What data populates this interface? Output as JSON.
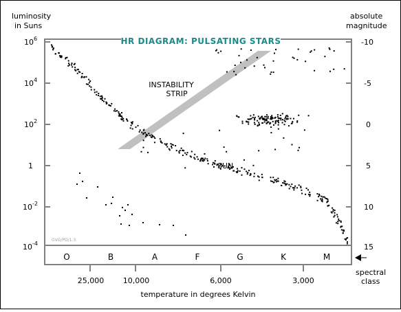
{
  "chart_data": {
    "type": "scatter",
    "title": "HR DIAGRAM:  PULSATING STARS",
    "left_axis_label": [
      "luminosity",
      "in Suns"
    ],
    "right_axis_label": [
      "absolute",
      "magnitude"
    ],
    "x_axis_label": "temperature in degrees Kelvin",
    "spectral_axis_label": [
      "spectral",
      "class"
    ],
    "credit": "GVG/PD/1.3",
    "luminosity_scale": "log",
    "luminosity_range": [
      0.0001,
      1000000
    ],
    "luminosity_ticks": [
      {
        "value": 1000000,
        "base": "10",
        "exp": "6"
      },
      {
        "value": 10000,
        "base": "10",
        "exp": "4"
      },
      {
        "value": 100,
        "base": "10",
        "exp": "2"
      },
      {
        "value": 1,
        "base": "1",
        "exp": ""
      },
      {
        "value": 0.01,
        "base": "10",
        "exp": "-2"
      },
      {
        "value": 0.0001,
        "base": "10",
        "exp": "-4"
      }
    ],
    "magnitude_ticks": [
      "-10",
      "-5",
      "0",
      "5",
      "10",
      "15"
    ],
    "temperature_ticks": [
      "25,000",
      "10,000",
      "6,000",
      "3,000"
    ],
    "spectral_classes": [
      "O",
      "B",
      "A",
      "F",
      "G",
      "K",
      "M"
    ],
    "annotations": {
      "instability_strip": [
        "INSTABILITY",
        "STRIP"
      ],
      "sun": "SUN"
    },
    "sun_luminosity": 1,
    "colors": {
      "title": "#1a8a8a",
      "frame": "#808080",
      "strip": "#c0c0c0",
      "points": "#000000"
    },
    "point_count": 620
  }
}
